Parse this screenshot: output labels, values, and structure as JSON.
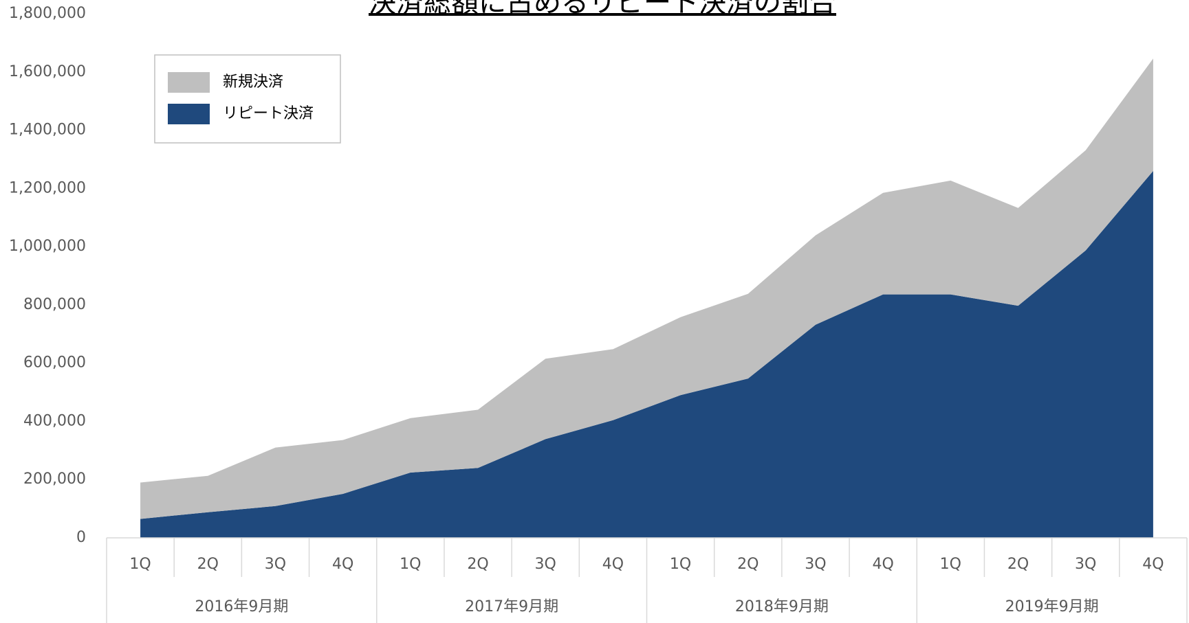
{
  "chart_data": {
    "type": "stacked_area",
    "title": "決済総額に占めるリピート決済の割合",
    "categories": [
      "1Q",
      "2Q",
      "3Q",
      "4Q",
      "1Q",
      "2Q",
      "3Q",
      "4Q",
      "1Q",
      "2Q",
      "3Q",
      "4Q",
      "1Q",
      "2Q",
      "3Q",
      "4Q"
    ],
    "groups": [
      "2016年9月期",
      "2017年9月期",
      "2018年9月期",
      "2019年9月期"
    ],
    "series": [
      {
        "name": "新規決済",
        "color": "#bfbfbf",
        "values": [
          125000,
          125000,
          201000,
          185000,
          187000,
          200000,
          276000,
          244000,
          268000,
          291000,
          307000,
          349000,
          391000,
          336000,
          344000,
          386000
        ]
      },
      {
        "name": "リピート決済",
        "color": "#1f497d",
        "values": [
          65000,
          88000,
          109000,
          151000,
          224000,
          240000,
          339000,
          404000,
          490000,
          547000,
          732000,
          836000,
          836000,
          797000,
          987000,
          1260000
        ]
      }
    ],
    "ylim": [
      0,
      1800000
    ],
    "yticks": [
      0,
      {
        "value": 200000,
        "label": "200,000"
      },
      {
        "value": 400000,
        "label": "400,000"
      },
      {
        "value": 600000,
        "label": "600,000"
      },
      {
        "value": 800000,
        "label": "800,000"
      },
      {
        "value": 1000000,
        "label": "1,000,000"
      },
      {
        "value": 1200000,
        "label": "1,200,000"
      },
      {
        "value": 1400000,
        "label": "1,400,000"
      },
      {
        "value": 1600000,
        "label": "1,600,000"
      },
      {
        "value": 1800000,
        "label": "1,800,000"
      }
    ],
    "legend": "upper left",
    "grid": false
  }
}
